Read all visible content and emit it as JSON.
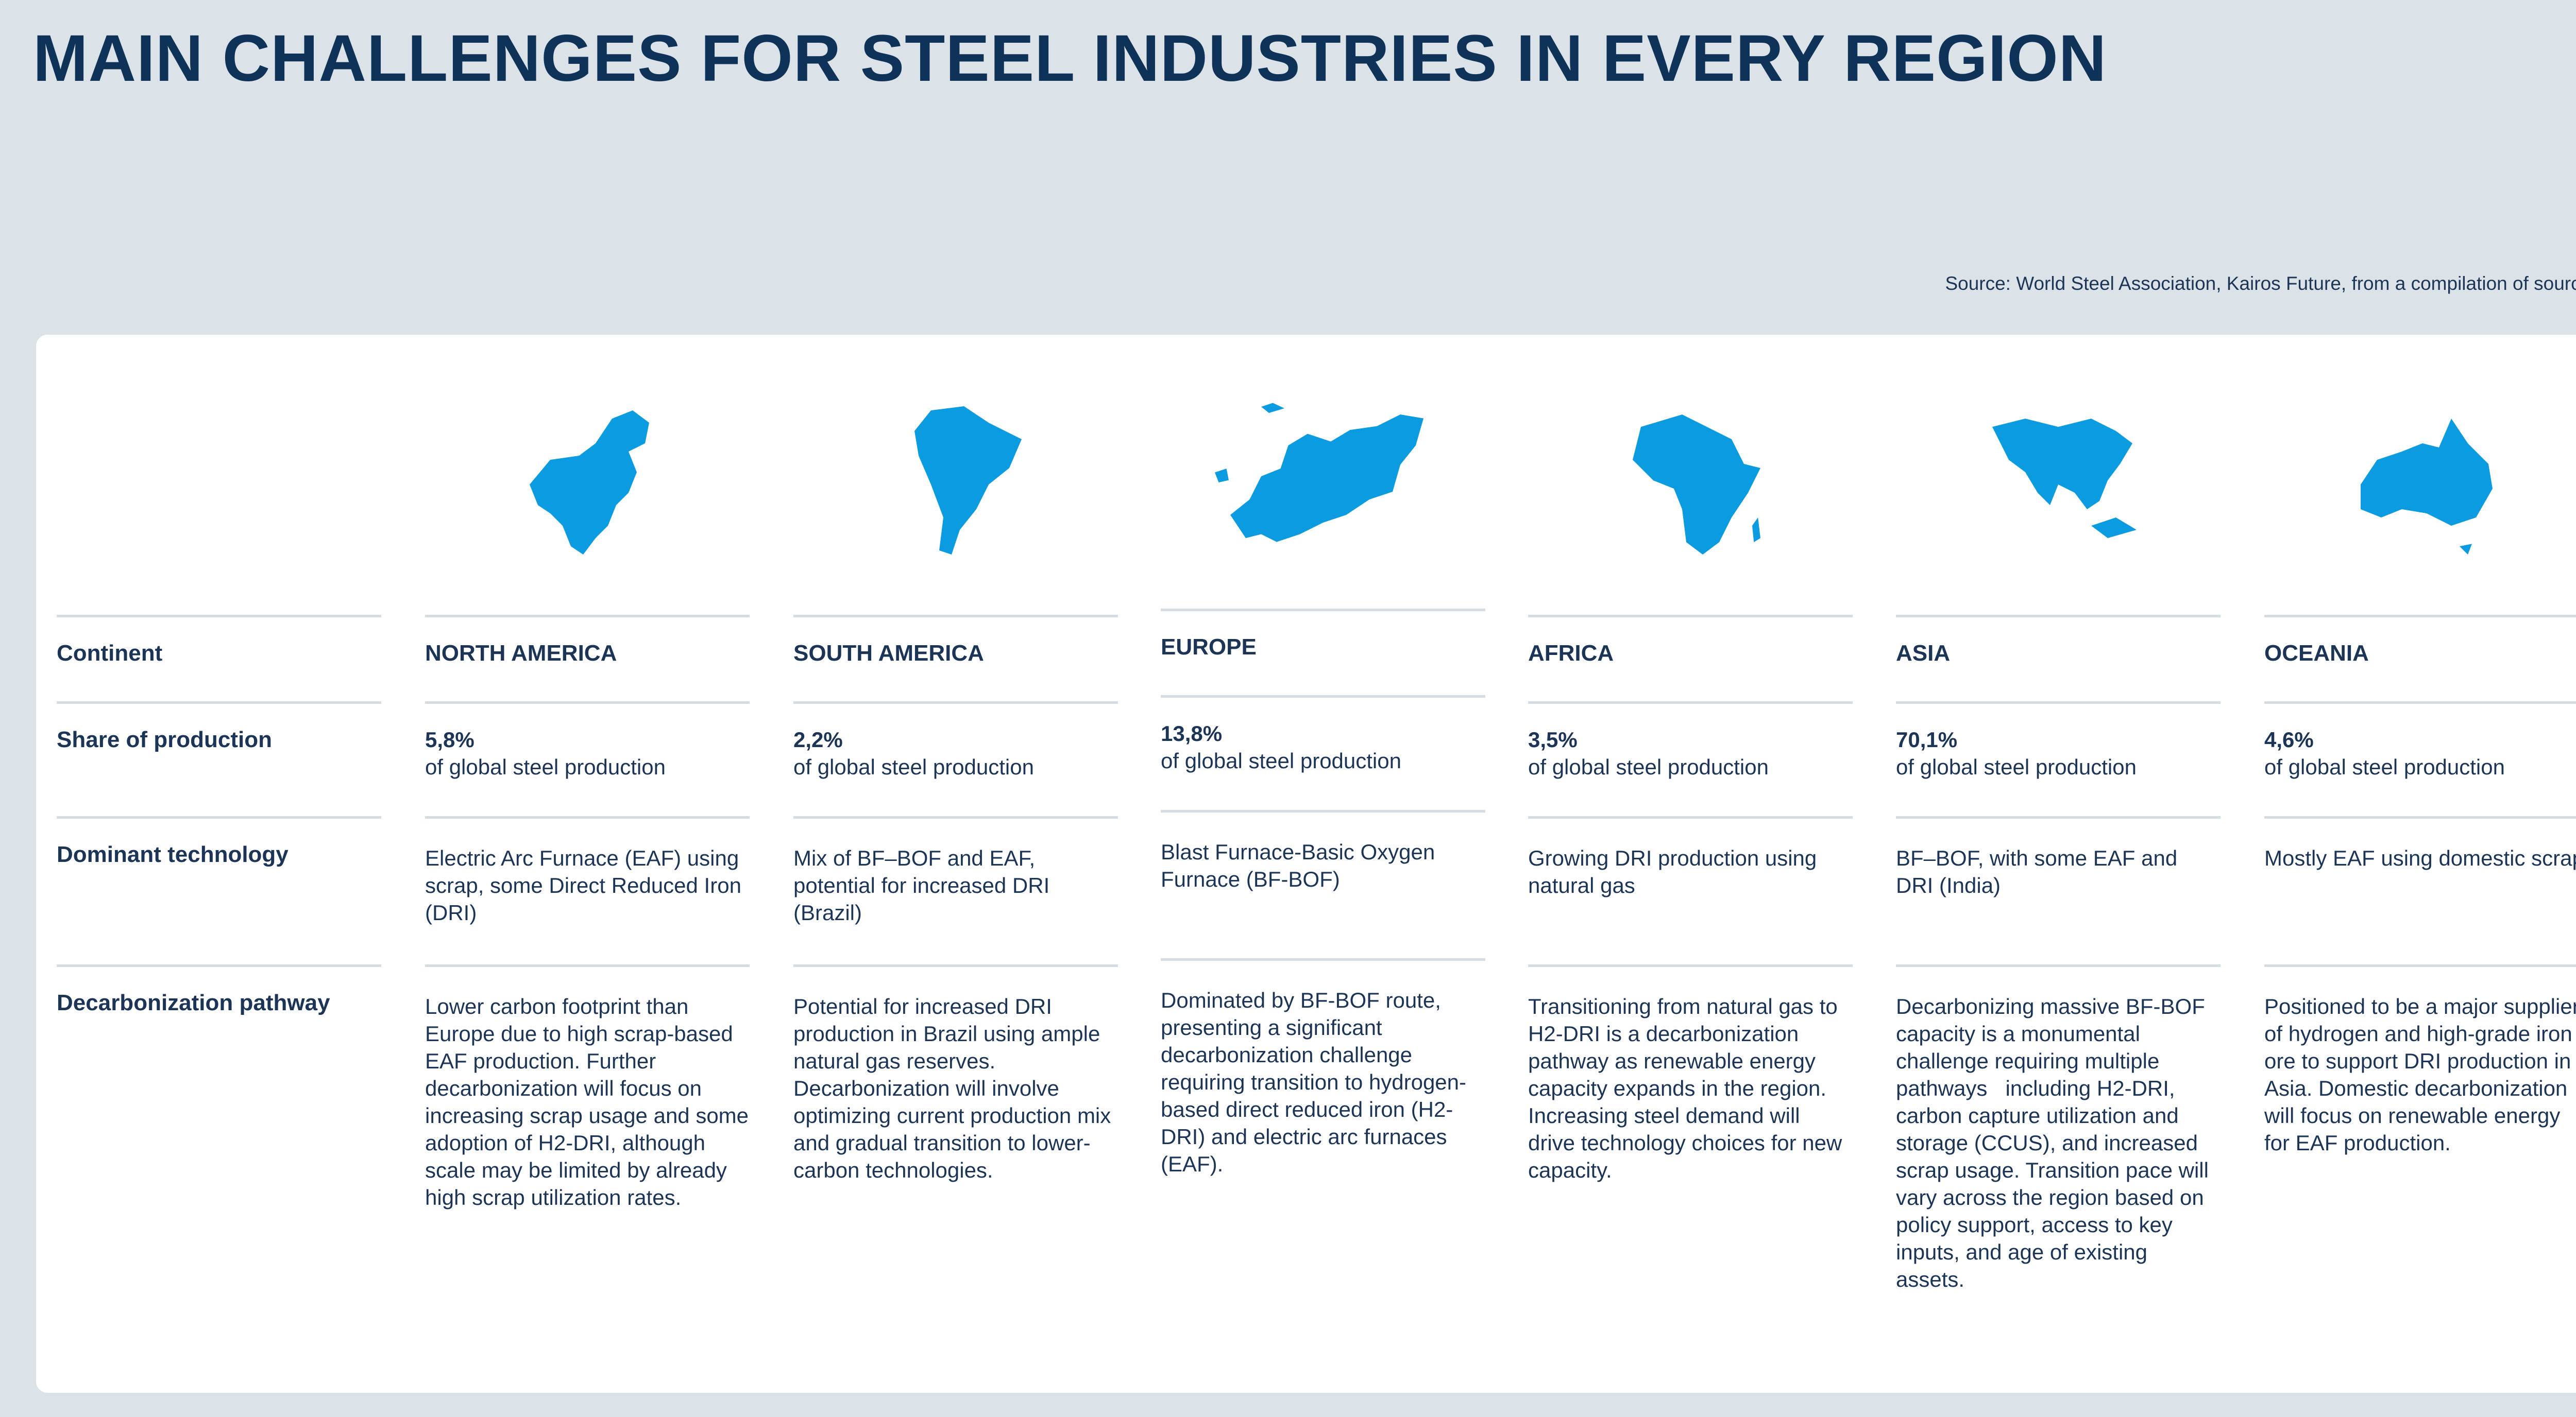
{
  "title": "MAIN CHALLENGES FOR STEEL INDUSTRIES IN EVERY REGION",
  "source": "Source: World Steel Association, Kairos Future, from a compilation of sources.",
  "map_color": "#0a9be0",
  "row_labels": {
    "continent": "Continent",
    "share": "Share of production",
    "technology": "Dominant technology",
    "pathway": "Decarbonization pathway"
  },
  "regions": [
    {
      "name": "NORTH AMERICA",
      "map_icon": "north-america-map",
      "share": "5,8%",
      "share_note": "of global steel production",
      "technology": "Electric Arc Furnace (EAF) using scrap, some Direct Reduced Iron (DRI)",
      "pathway": "Lower carbon footprint than Europe due to high scrap-based EAF production. Further decarbonization will focus on increasing scrap usage and some adoption of H2-DRI, although scale may be limited by already high scrap utilization rates."
    },
    {
      "name": "SOUTH AMERICA",
      "map_icon": "south-america-map",
      "share": "2,2%",
      "share_note": "of global steel production",
      "technology": "Mix of BF–BOF and EAF, potential for increased DRI (Brazil)",
      "pathway": "Potential for increased DRI production in Brazil using ample natural gas reserves. Decarbonization will involve optimizing current production mix and gradual transition to lower-carbon technologies."
    },
    {
      "name": "EUROPE",
      "map_icon": "europe-map",
      "share": "13,8%",
      "share_note": "of global steel production",
      "technology": "Blast Furnace-Basic Oxygen Furnace (BF-BOF)",
      "pathway": "Dominated by BF-BOF route, presenting a significant decarbonization challenge requiring transition to hydrogen-based direct reduced iron (H2-DRI) and electric arc furnaces (EAF)."
    },
    {
      "name": "AFRICA",
      "map_icon": "africa-map",
      "share": "3,5%",
      "share_note": "of global steel production",
      "technology": "Growing DRI production using natural gas",
      "pathway": "Transitioning from natural gas to H2-DRI is a decarbonization pathway as renewable energy capacity expands in the region. Increasing steel demand will drive technology choices for new capacity."
    },
    {
      "name": "ASIA",
      "map_icon": "asia-map",
      "share": "70,1%",
      "share_note": "of global steel production",
      "technology": "BF–BOF, with some EAF and DRI (India)",
      "pathway": "Decarbonizing massive BF-BOF capacity is a monumental challenge requiring multiple pathways   including H2-DRI, carbon capture utilization and storage (CCUS), and increased scrap usage. Transition pace will vary across the region based on policy support, access to key inputs, and age of existing assets."
    },
    {
      "name": "OCEANIA",
      "map_icon": "oceania-map",
      "share": "4,6%",
      "share_note": "of global steel production",
      "technology": "Mostly EAF using domestic scrap",
      "pathway": "Positioned to be a major supplier of hydrogen and high-grade iron ore to support DRI production in Asia. Domestic decarbonization will focus on renewable energy   for EAF production."
    }
  ]
}
